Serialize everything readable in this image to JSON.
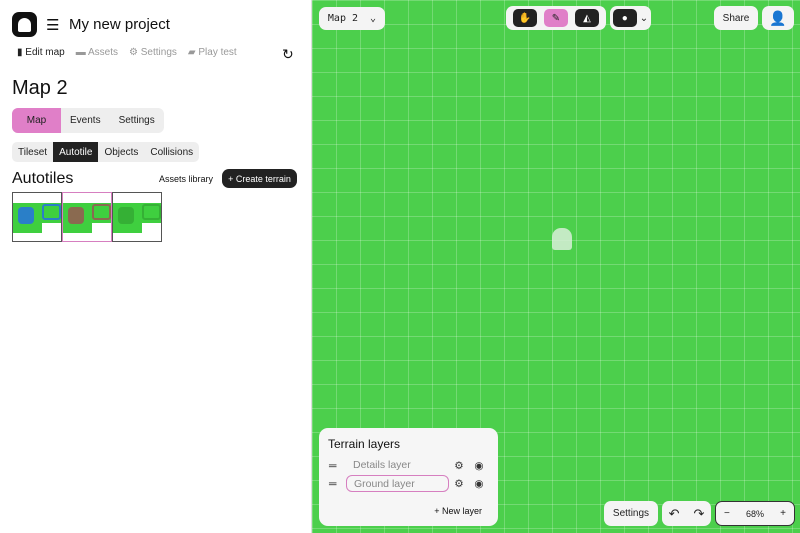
{
  "header": {
    "project_title": "My new project",
    "logo": "ghost-logo",
    "menu_icon": "menu-collapse-icon"
  },
  "nav": {
    "items": [
      {
        "label": "Edit map",
        "icon": "map-icon"
      },
      {
        "label": "Assets",
        "icon": "folder-icon"
      },
      {
        "label": "Settings",
        "icon": "gear-icon"
      },
      {
        "label": "Play test",
        "icon": "gamepad-icon"
      }
    ],
    "refresh_icon": "refresh-icon"
  },
  "map_title": "Map 2",
  "main_tabs": [
    "Map",
    "Events",
    "Settings"
  ],
  "sub_tabs": [
    "Tileset",
    "Autotile",
    "Objects",
    "Collisions"
  ],
  "autotiles": {
    "heading": "Autotiles",
    "library": "Assets library",
    "create": "+ Create terrain"
  },
  "toolbar": {
    "map_select": "Map 2",
    "share": "Share",
    "tools": [
      "hand-icon",
      "pencil-icon",
      "eraser-icon",
      "circle-brush-icon"
    ]
  },
  "terrain_layers": {
    "title": "Terrain layers",
    "layers": [
      "Details layer",
      "Ground layer"
    ],
    "new_layer": "+ New layer"
  },
  "bottom": {
    "settings": "Settings",
    "zoom": "68%",
    "minus": "−",
    "plus": "+"
  },
  "colors": {
    "accent": "#e07fc8",
    "grass": "#4ccf4c",
    "dark": "#222222"
  }
}
